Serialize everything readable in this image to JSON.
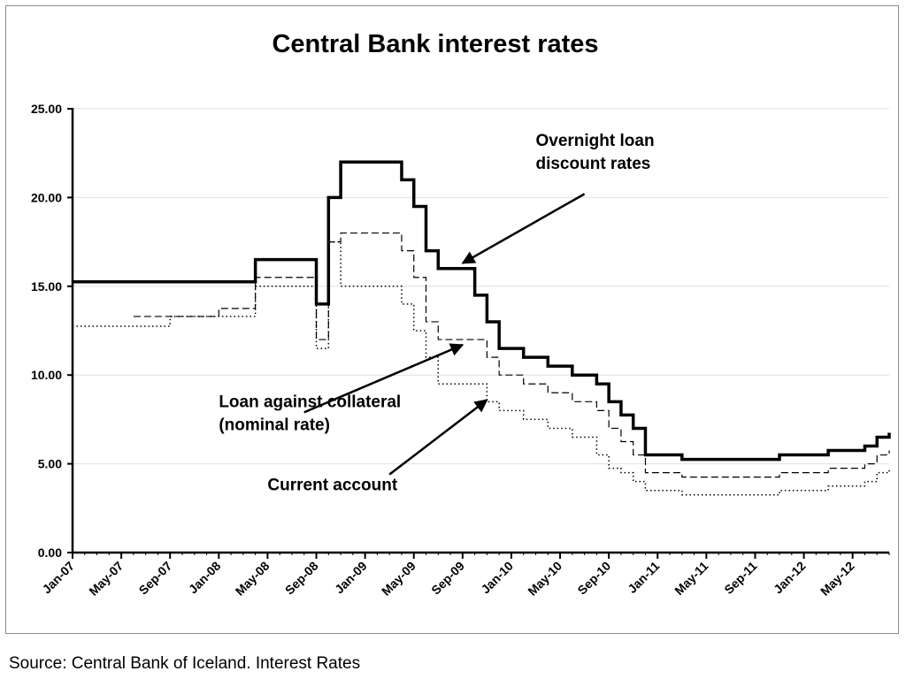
{
  "source_note": "Source: Central Bank of Iceland. Interest Rates",
  "colors": {
    "series": "#000000",
    "grid": "#e0e0e0",
    "axis": "#000000"
  },
  "chart_data": {
    "type": "line",
    "title": "Central Bank interest rates",
    "xlabel": "",
    "ylabel": "",
    "x_format": "YYYY-MM",
    "xlim": [
      "2007-01",
      "2012-08"
    ],
    "ylim": [
      0,
      25
    ],
    "yticks": [
      0,
      5,
      10,
      15,
      20,
      25
    ],
    "ytick_labels": [
      "0.00",
      "5.00",
      "10.00",
      "15.00",
      "20.00",
      "25.00"
    ],
    "xticks": [
      "2007-01",
      "2007-05",
      "2007-09",
      "2008-01",
      "2008-05",
      "2008-09",
      "2009-01",
      "2009-05",
      "2009-09",
      "2010-01",
      "2010-05",
      "2010-09",
      "2011-01",
      "2011-05",
      "2011-09",
      "2012-01",
      "2012-05"
    ],
    "xtick_labels": [
      "Jan-07",
      "May-07",
      "Sep-07",
      "Jan-08",
      "May-08",
      "Sep-08",
      "Jan-09",
      "May-09",
      "Sep-09",
      "Jan-10",
      "May-10",
      "Sep-10",
      "Jan-11",
      "May-11",
      "Sep-11",
      "Jan-12",
      "May-12"
    ],
    "grid": true,
    "step": true,
    "series": [
      {
        "line_style": "solid",
        "x": [
          "2007-01",
          "2008-04",
          "2008-09",
          "2008-10",
          "2008-11",
          "2009-01",
          "2009-04",
          "2009-05",
          "2009-06",
          "2009-07",
          "2009-10",
          "2009-11",
          "2009-12",
          "2010-02",
          "2010-04",
          "2010-06",
          "2010-08",
          "2010-09",
          "2010-10",
          "2010-11",
          "2010-12",
          "2011-03",
          "2011-08",
          "2011-11",
          "2012-03",
          "2012-06",
          "2012-07",
          "2012-08"
        ],
        "y": [
          15.25,
          16.5,
          14.0,
          20.0,
          22.0,
          22.0,
          21.0,
          19.5,
          17.0,
          16.0,
          14.5,
          13.0,
          11.5,
          11.0,
          10.5,
          10.0,
          9.5,
          8.5,
          7.75,
          7.0,
          5.5,
          5.25,
          5.25,
          5.5,
          5.75,
          6.0,
          6.5,
          6.75
        ]
      },
      {
        "line_style": "dashed",
        "x": [
          "2007-06",
          "2008-01",
          "2008-04",
          "2008-09",
          "2008-10",
          "2008-11",
          "2009-01",
          "2009-04",
          "2009-05",
          "2009-06",
          "2009-07",
          "2009-10",
          "2009-11",
          "2009-12",
          "2010-02",
          "2010-04",
          "2010-06",
          "2010-08",
          "2010-09",
          "2010-10",
          "2010-11",
          "2010-12",
          "2011-03",
          "2011-08",
          "2011-11",
          "2012-03",
          "2012-06",
          "2012-07",
          "2012-08"
        ],
        "y": [
          13.3,
          13.75,
          15.5,
          12.0,
          17.5,
          18.0,
          18.0,
          17.0,
          15.5,
          13.0,
          12.0,
          12.0,
          11.0,
          10.0,
          9.5,
          9.0,
          8.5,
          8.0,
          7.0,
          6.25,
          5.5,
          4.5,
          4.25,
          4.25,
          4.5,
          4.75,
          5.0,
          5.5,
          5.75
        ]
      },
      {
        "line_style": "dotted",
        "x": [
          "2007-01",
          "2007-09",
          "2008-01",
          "2008-04",
          "2008-09",
          "2008-10",
          "2008-11",
          "2009-01",
          "2009-04",
          "2009-05",
          "2009-06",
          "2009-07",
          "2009-10",
          "2009-11",
          "2009-12",
          "2010-02",
          "2010-04",
          "2010-06",
          "2010-08",
          "2010-09",
          "2010-10",
          "2010-11",
          "2010-12",
          "2011-03",
          "2011-08",
          "2011-11",
          "2012-03",
          "2012-06",
          "2012-07",
          "2012-08"
        ],
        "y": [
          12.75,
          13.3,
          13.3,
          15.0,
          11.5,
          17.5,
          15.0,
          15.0,
          14.0,
          12.5,
          11.0,
          9.5,
          9.5,
          8.5,
          8.0,
          7.5,
          7.0,
          6.5,
          5.5,
          4.75,
          4.5,
          4.0,
          3.5,
          3.25,
          3.25,
          3.5,
          3.75,
          4.0,
          4.5,
          4.75
        ]
      }
    ],
    "annotations": [
      {
        "lines": [
          "Overnight loan",
          "discount rates"
        ],
        "text_x": "2010-03",
        "text_y": 22.9,
        "arrow_from": [
          "2010-07",
          20.2
        ],
        "arrow_to": [
          "2009-09",
          16.3
        ]
      },
      {
        "lines": [
          "Loan against collateral",
          "(nominal rate)"
        ],
        "text_x": "2008-01",
        "text_y": 8.2,
        "arrow_from": [
          "2008-08",
          7.9
        ],
        "arrow_to": [
          "2009-09",
          11.7
        ]
      },
      {
        "lines": [
          "Current account"
        ],
        "text_x": "2008-05",
        "text_y": 3.5,
        "arrow_from": [
          "2009-03",
          4.4
        ],
        "arrow_to": [
          "2009-11",
          8.6
        ]
      }
    ]
  }
}
